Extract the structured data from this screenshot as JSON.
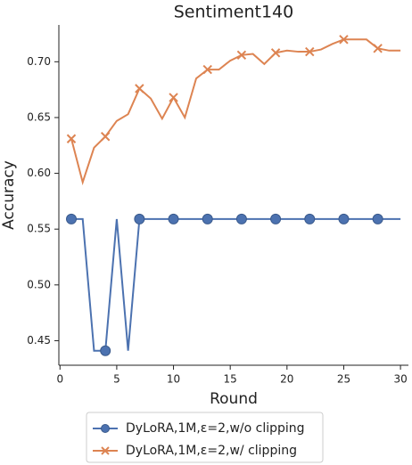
{
  "chart_data": {
    "type": "line",
    "title": "Sentiment140",
    "x_label": "Round",
    "y_label": "Accuracy",
    "x": [
      1,
      2,
      3,
      4,
      5,
      6,
      7,
      8,
      9,
      10,
      11,
      12,
      13,
      14,
      15,
      16,
      17,
      18,
      19,
      20,
      21,
      22,
      23,
      24,
      25,
      26,
      27,
      28,
      29,
      30
    ],
    "series": [
      {
        "name": "DyLoRA,1M,ε=2,w/o clipping",
        "color": "#4c72b0",
        "marker": "o",
        "values": [
          0.559,
          0.559,
          0.441,
          0.441,
          0.559,
          0.441,
          0.559,
          0.559,
          0.559,
          0.559,
          0.559,
          0.559,
          0.559,
          0.559,
          0.559,
          0.559,
          0.559,
          0.559,
          0.559,
          0.559,
          0.559,
          0.559,
          0.559,
          0.559,
          0.559,
          0.559,
          0.559,
          0.559,
          0.559,
          0.559
        ]
      },
      {
        "name": "DyLoRA,1M,ε=2,w/ clipping",
        "color": "#dd8452",
        "marker": "x",
        "values": [
          0.631,
          0.592,
          0.623,
          0.633,
          0.647,
          0.653,
          0.676,
          0.667,
          0.649,
          0.668,
          0.65,
          0.685,
          0.693,
          0.693,
          0.701,
          0.706,
          0.707,
          0.698,
          0.708,
          0.71,
          0.709,
          0.709,
          0.711,
          0.716,
          0.72,
          0.72,
          0.72,
          0.712,
          0.71,
          0.71
        ]
      }
    ],
    "markevery": 3,
    "xlim": [
      -0.1,
      30.7
    ],
    "xticks": [
      0,
      5,
      10,
      15,
      20,
      25,
      30
    ],
    "ylim": [
      0.428,
      0.733
    ],
    "yticks": [
      {
        "value": 0.45,
        "label": "0.45"
      },
      {
        "value": 0.5,
        "label": "0.50"
      },
      {
        "value": 0.55,
        "label": "0.55"
      },
      {
        "value": 0.6,
        "label": "0.60"
      },
      {
        "value": 0.65,
        "label": "0.65"
      },
      {
        "value": 0.7,
        "label": "0.70"
      }
    ],
    "legend": "bottom"
  }
}
